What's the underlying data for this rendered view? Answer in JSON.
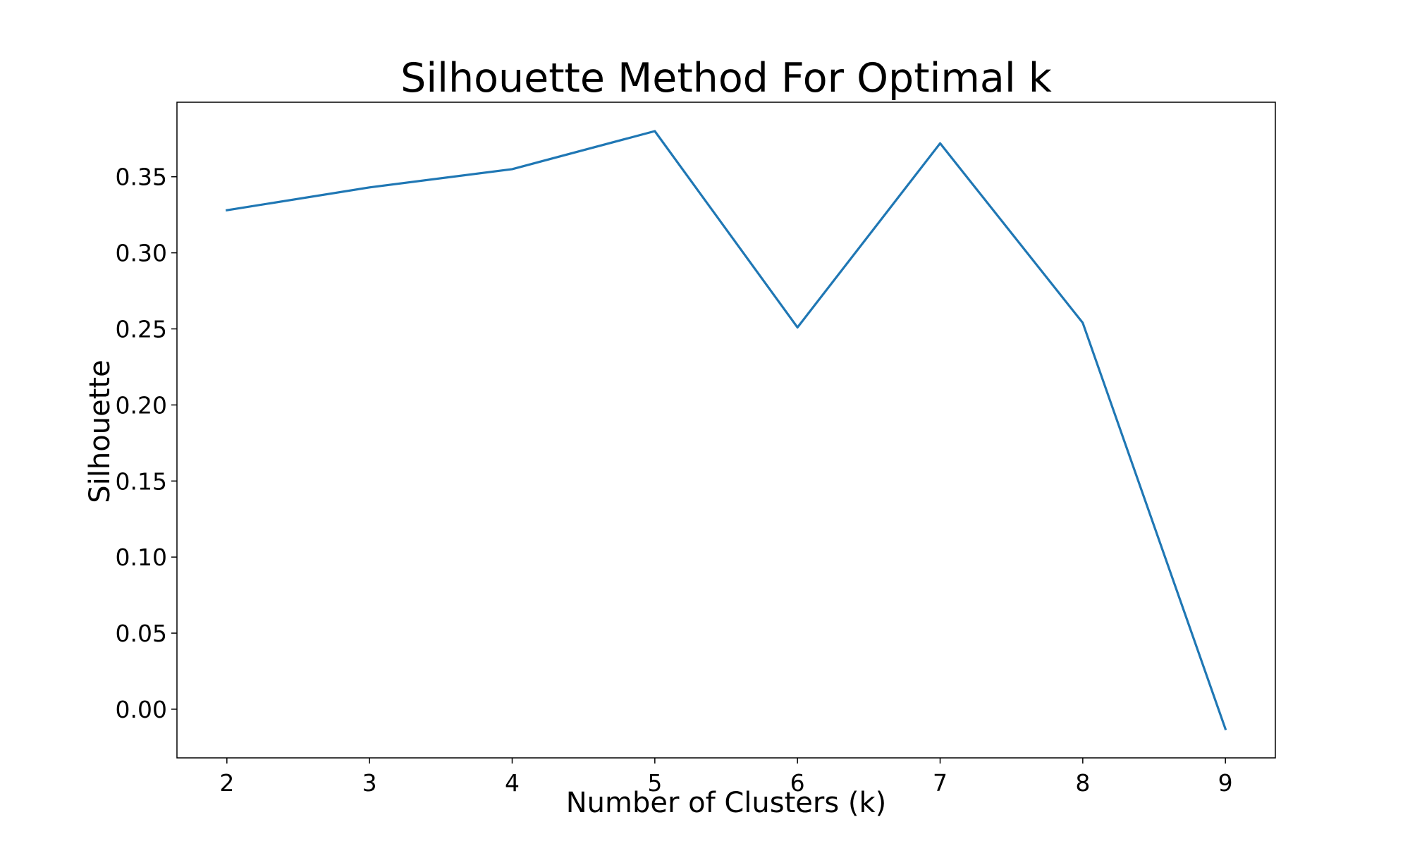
{
  "chart_data": {
    "type": "line",
    "title": "Silhouette Method For Optimal k",
    "xlabel": "Number of Clusters (k)",
    "ylabel": "Silhouette",
    "x": [
      2,
      3,
      4,
      5,
      6,
      7,
      8,
      9
    ],
    "series": [
      {
        "values": [
          0.328,
          0.343,
          0.355,
          0.38,
          0.251,
          0.372,
          0.254,
          -0.013
        ]
      }
    ],
    "xlim": [
      1.65,
      9.35
    ],
    "ylim": [
      -0.032,
      0.399
    ],
    "x_ticks": [
      "2",
      "3",
      "4",
      "5",
      "6",
      "7",
      "8",
      "9"
    ],
    "y_ticks": [
      "0.00",
      "0.05",
      "0.10",
      "0.15",
      "0.20",
      "0.25",
      "0.30",
      "0.35"
    ],
    "grid": false,
    "legend": "none",
    "colors": {
      "line": "#1f77b4",
      "frame": "#000000"
    }
  }
}
